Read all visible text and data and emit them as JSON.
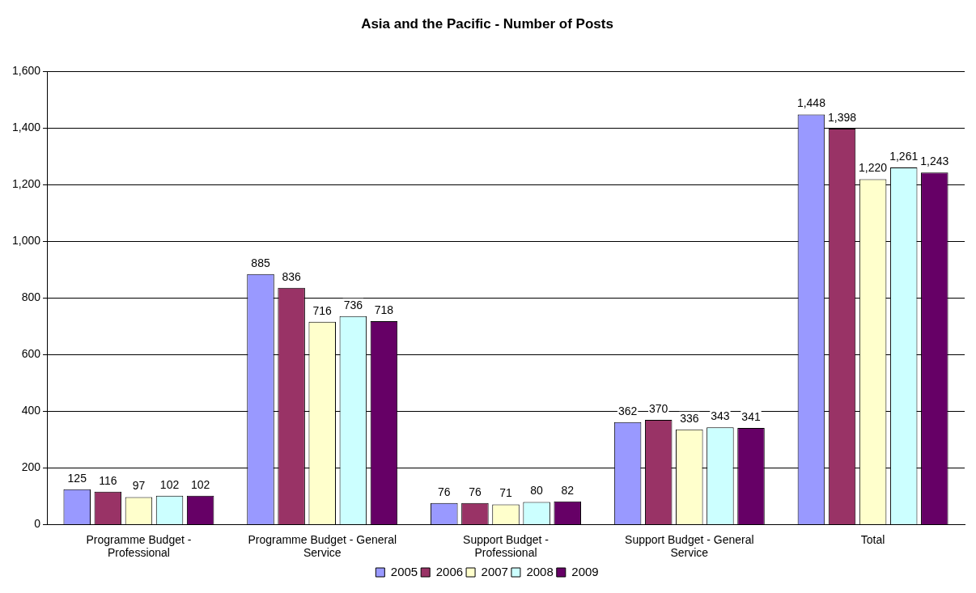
{
  "chart_data": {
    "type": "bar",
    "title": "Asia and the Pacific - Number of Posts",
    "categories": [
      "Programme Budget - Professional",
      "Programme Budget - General Service",
      "Support Budget - Professional",
      "Support Budget - General Service",
      "Total"
    ],
    "series": [
      {
        "name": "2005",
        "color": "#9999ff",
        "values": [
          125,
          885,
          76,
          362,
          1448
        ],
        "value_labels": [
          "125",
          "885",
          "76",
          "362",
          "1,448"
        ]
      },
      {
        "name": "2006",
        "color": "#993366",
        "values": [
          116,
          836,
          76,
          370,
          1398
        ],
        "value_labels": [
          "116",
          "836",
          "76",
          "370",
          "1,398"
        ]
      },
      {
        "name": "2007",
        "color": "#ffffcc",
        "values": [
          97,
          716,
          71,
          336,
          1220
        ],
        "value_labels": [
          "97",
          "716",
          "71",
          "336",
          "1,220"
        ]
      },
      {
        "name": "2008",
        "color": "#ccffff",
        "values": [
          102,
          736,
          80,
          343,
          1261
        ],
        "value_labels": [
          "102",
          "736",
          "80",
          "343",
          "1,261"
        ]
      },
      {
        "name": "2009",
        "color": "#660066",
        "values": [
          102,
          718,
          82,
          341,
          1243
        ],
        "value_labels": [
          "102",
          "718",
          "82",
          "341",
          "1,243"
        ]
      }
    ],
    "ylim": [
      0,
      1600
    ],
    "yticks": [
      {
        "value": 0,
        "label": "0"
      },
      {
        "value": 200,
        "label": "200"
      },
      {
        "value": 400,
        "label": "400"
      },
      {
        "value": 600,
        "label": "600"
      },
      {
        "value": 800,
        "label": "800"
      },
      {
        "value": 1000,
        "label": "1,000"
      },
      {
        "value": 1200,
        "label": "1,200"
      },
      {
        "value": 1400,
        "label": "1,400"
      },
      {
        "value": 1600,
        "label": "1,600"
      }
    ],
    "grid": "y",
    "legend": "bottom"
  }
}
